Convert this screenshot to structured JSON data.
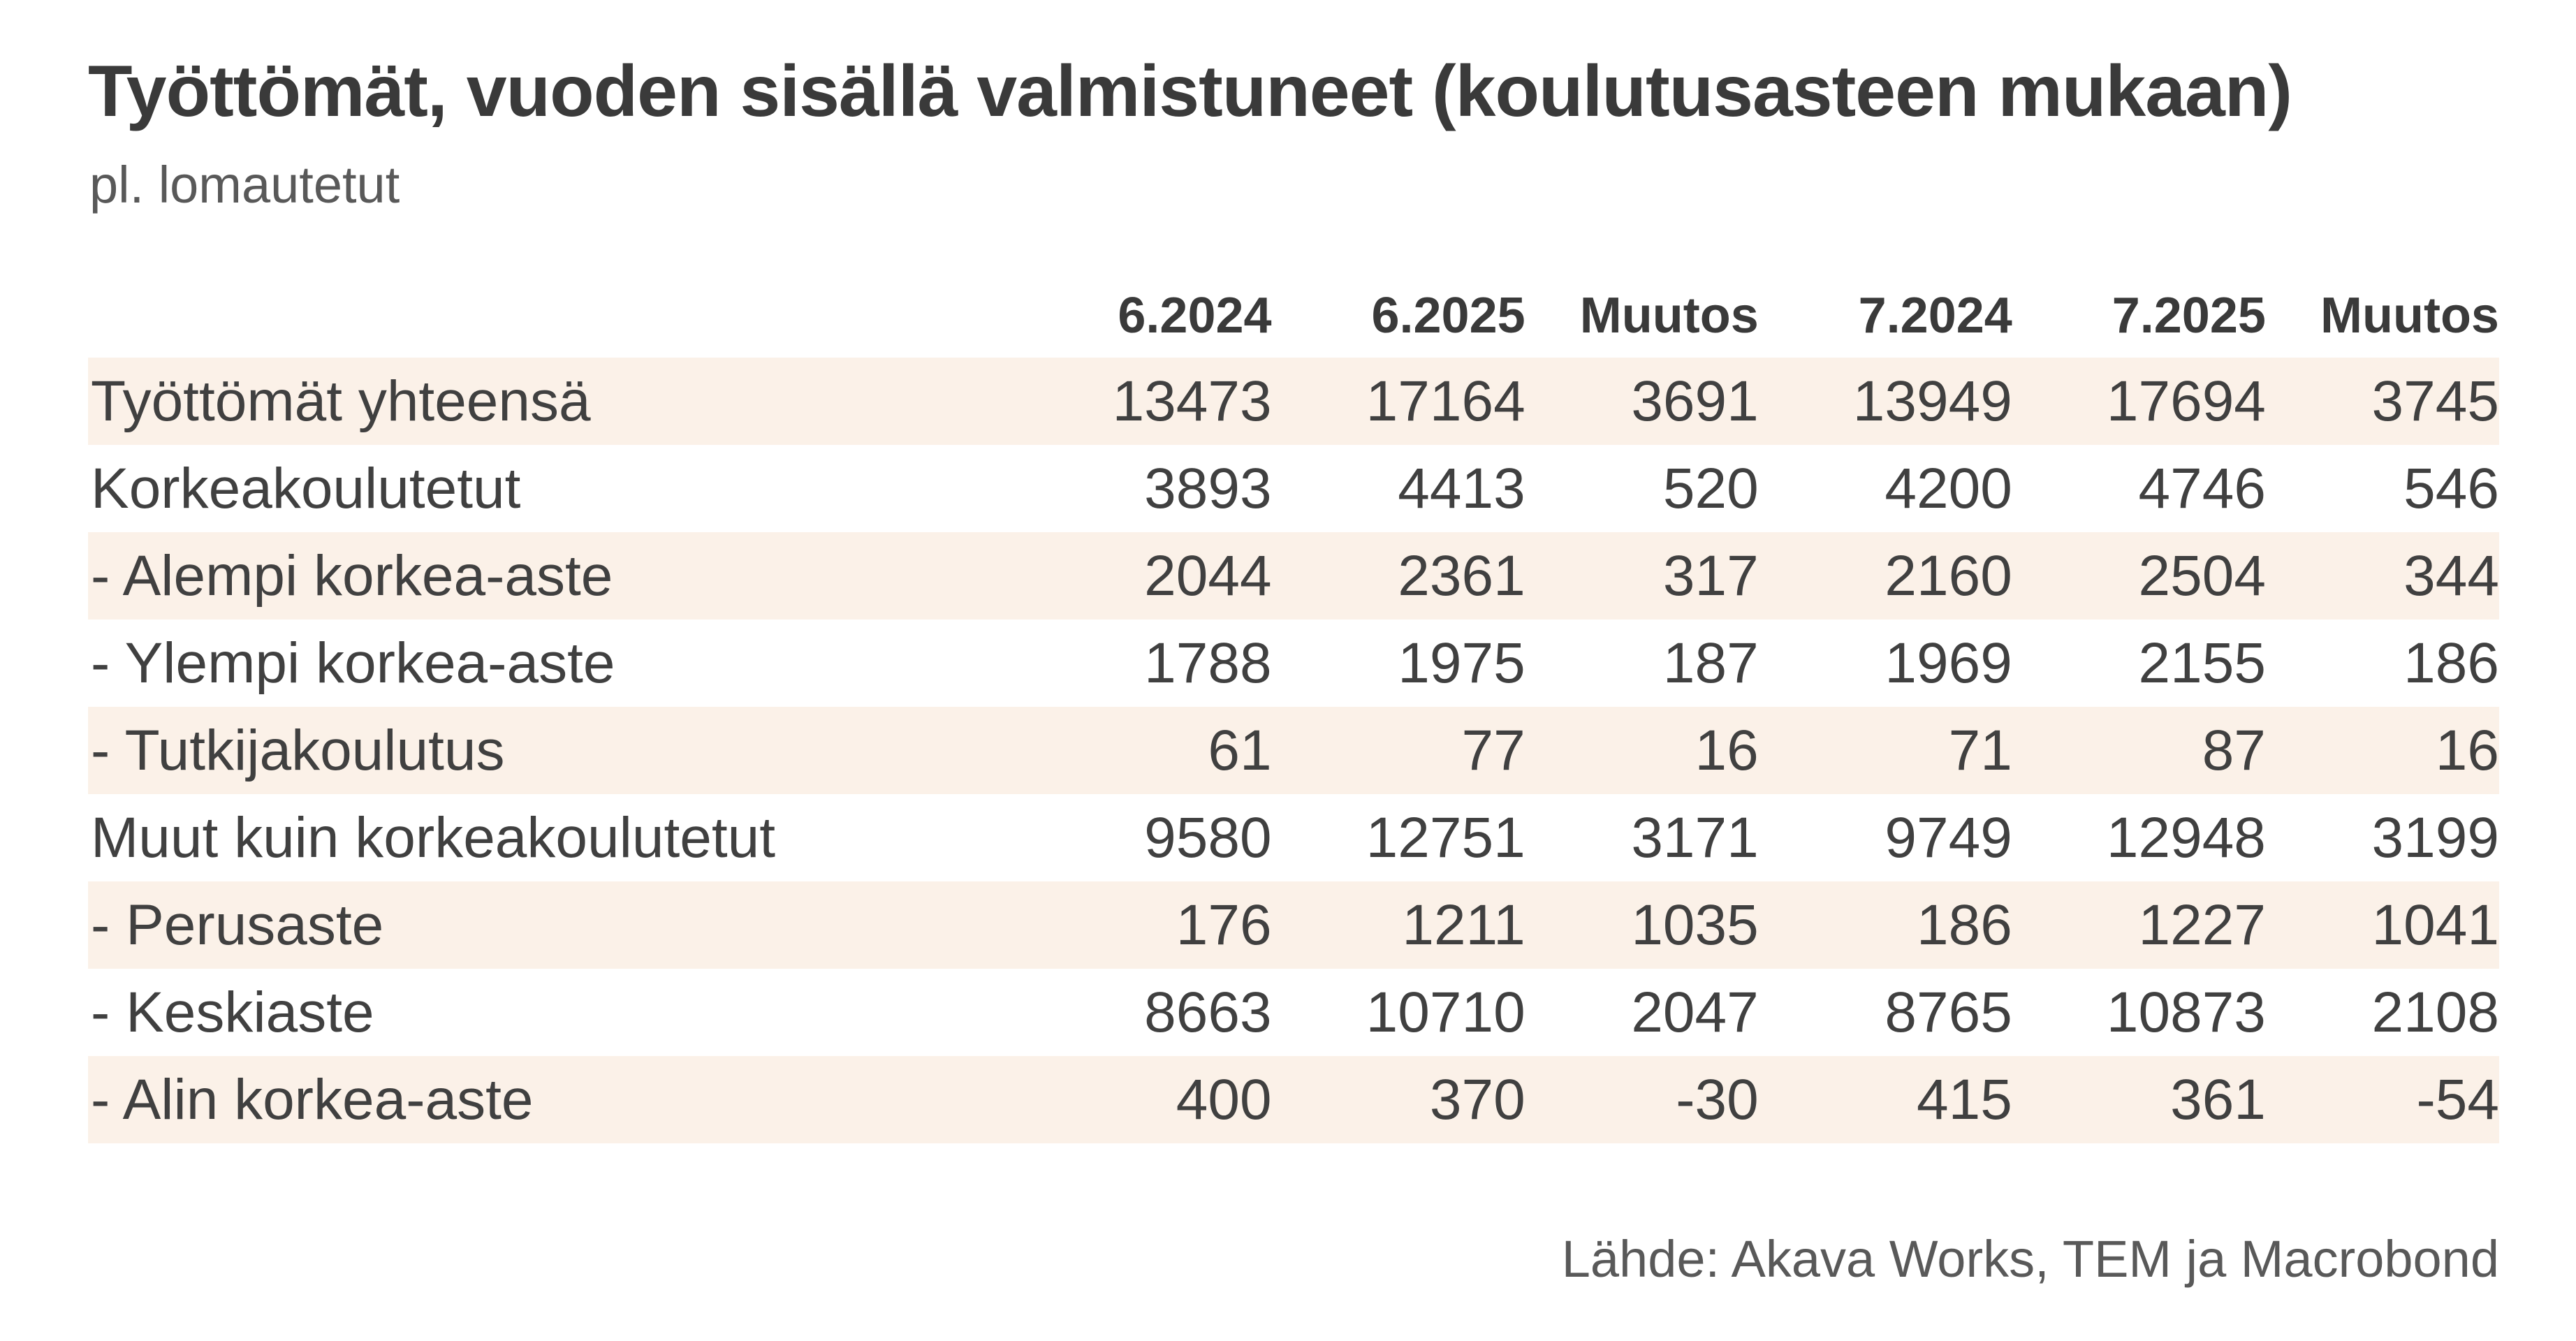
{
  "title": "Työttömät, vuoden sisällä valmistuneet (koulutusasteen mukaan)",
  "subtitle": "pl. lomautetut",
  "source": "Lähde: Akava Works, TEM ja Macrobond",
  "colors": {
    "stripe": "#fbf1e8",
    "text": "#404040"
  },
  "chart_data": {
    "type": "table",
    "columns": [
      "6.2024",
      "6.2025",
      "Muutos",
      "7.2024",
      "7.2025",
      "Muutos"
    ],
    "rows": [
      {
        "label": "Työttömät yhteensä",
        "values": [
          "13473",
          "17164",
          "3691",
          "13949",
          "17694",
          "3745"
        ]
      },
      {
        "label": "Korkeakoulutetut",
        "values": [
          "3893",
          "4413",
          "520",
          "4200",
          "4746",
          "546"
        ]
      },
      {
        "label": "- Alempi korkea-aste",
        "values": [
          "2044",
          "2361",
          "317",
          "2160",
          "2504",
          "344"
        ]
      },
      {
        "label": "- Ylempi korkea-aste",
        "values": [
          "1788",
          "1975",
          "187",
          "1969",
          "2155",
          "186"
        ]
      },
      {
        "label": "- Tutkijakoulutus",
        "values": [
          "61",
          "77",
          "16",
          "71",
          "87",
          "16"
        ]
      },
      {
        "label": "Muut kuin korkeakoulutetut",
        "values": [
          "9580",
          "12751",
          "3171",
          "9749",
          "12948",
          "3199"
        ]
      },
      {
        "label": "- Perusaste",
        "values": [
          "176",
          "1211",
          "1035",
          "186",
          "1227",
          "1041"
        ]
      },
      {
        "label": "- Keskiaste",
        "values": [
          "8663",
          "10710",
          "2047",
          "8765",
          "10873",
          "2108"
        ]
      },
      {
        "label": "- Alin korkea-aste",
        "values": [
          "400",
          "370",
          "-30",
          "415",
          "361",
          "-54"
        ]
      }
    ]
  }
}
